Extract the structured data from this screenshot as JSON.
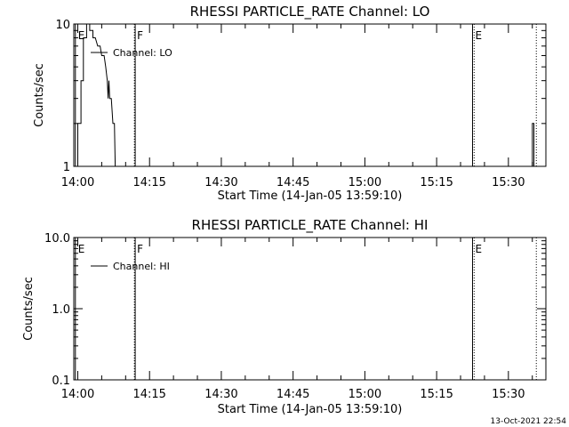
{
  "footer": {
    "timestamp": "13-Oct-2021 22:54"
  },
  "chart_data": [
    {
      "type": "line",
      "title": "RHESSI PARTICLE_RATE Channel: LO",
      "xlabel": "Start Time (14-Jan-05 13:59:10)",
      "ylabel": "Counts/sec",
      "y_scale": "log",
      "xlim": [
        "13:59:10",
        "15:37:50"
      ],
      "ylim": [
        1,
        10
      ],
      "x_ticks": [
        "14:00",
        "14:15",
        "14:30",
        "14:45",
        "15:00",
        "15:15",
        "15:30"
      ],
      "y_ticks": [
        {
          "label": "1",
          "value": 1
        },
        {
          "label": "10",
          "value": 10
        }
      ],
      "legend": {
        "placement": "top-left",
        "entries": [
          {
            "label": "Channel: LO"
          }
        ]
      },
      "event_markers": [
        {
          "label": "E",
          "time": "13:59:30",
          "style": "solid"
        },
        {
          "label": "F",
          "time": "14:11:50",
          "style": "dotted"
        },
        {
          "time": "14:12:00",
          "style": "solid"
        },
        {
          "label": "E",
          "time": "15:22:30",
          "style": "solid"
        },
        {
          "time": "15:22:50",
          "style": "dotted"
        },
        {
          "time": "15:35:50",
          "style": "dotted"
        }
      ],
      "series": [
        {
          "segments": [
            [
              {
                "x": "14:00:00",
                "y": 1
              },
              {
                "x": "14:00:00",
                "y": 2
              },
              {
                "x": "14:00:40",
                "y": 2
              },
              {
                "x": "14:00:40",
                "y": 4
              },
              {
                "x": "14:01:10",
                "y": 4
              },
              {
                "x": "14:01:10",
                "y": 8
              },
              {
                "x": "14:01:50",
                "y": 8
              },
              {
                "x": "14:01:50",
                "y": 10
              },
              {
                "x": "14:02:30",
                "y": 10
              },
              {
                "x": "14:02:30",
                "y": 9
              },
              {
                "x": "14:03:10",
                "y": 9
              },
              {
                "x": "14:03:10",
                "y": 8
              },
              {
                "x": "14:03:40",
                "y": 8
              },
              {
                "x": "14:04:10",
                "y": 7
              },
              {
                "x": "14:04:40",
                "y": 7
              },
              {
                "x": "14:05:00",
                "y": 6
              },
              {
                "x": "14:05:30",
                "y": 6
              },
              {
                "x": "14:05:50",
                "y": 5
              },
              {
                "x": "14:06:10",
                "y": 4
              },
              {
                "x": "14:06:20",
                "y": 3
              },
              {
                "x": "14:06:30",
                "y": 4
              },
              {
                "x": "14:06:40",
                "y": 3
              },
              {
                "x": "14:07:00",
                "y": 3
              },
              {
                "x": "14:07:20",
                "y": 2
              },
              {
                "x": "14:07:40",
                "y": 2
              },
              {
                "x": "14:07:50",
                "y": 1
              }
            ],
            [
              {
                "x": "15:35:00",
                "y": 1
              },
              {
                "x": "15:35:00",
                "y": 2
              },
              {
                "x": "15:35:20",
                "y": 2
              },
              {
                "x": "15:35:20",
                "y": 1
              }
            ]
          ]
        }
      ]
    },
    {
      "type": "line",
      "title": "RHESSI PARTICLE_RATE Channel: HI",
      "xlabel": "Start Time (14-Jan-05 13:59:10)",
      "ylabel": "Counts/sec",
      "y_scale": "log",
      "xlim": [
        "13:59:10",
        "15:37:50"
      ],
      "ylim": [
        0.1,
        10
      ],
      "x_ticks": [
        "14:00",
        "14:15",
        "14:30",
        "14:45",
        "15:00",
        "15:15",
        "15:30"
      ],
      "y_ticks": [
        {
          "label": "0.1",
          "value": 0.1
        },
        {
          "label": "1.0",
          "value": 1
        },
        {
          "label": "10.0",
          "value": 10
        }
      ],
      "legend": {
        "placement": "top-left",
        "entries": [
          {
            "label": "Channel: HI"
          }
        ]
      },
      "event_markers": [
        {
          "label": "E",
          "time": "13:59:30",
          "style": "solid"
        },
        {
          "label": "F",
          "time": "14:11:50",
          "style": "dotted"
        },
        {
          "time": "14:12:00",
          "style": "solid"
        },
        {
          "label": "E",
          "time": "15:22:30",
          "style": "solid"
        },
        {
          "time": "15:22:50",
          "style": "dotted"
        },
        {
          "time": "15:35:50",
          "style": "dotted"
        }
      ],
      "series": [
        {
          "segments": []
        }
      ]
    }
  ]
}
